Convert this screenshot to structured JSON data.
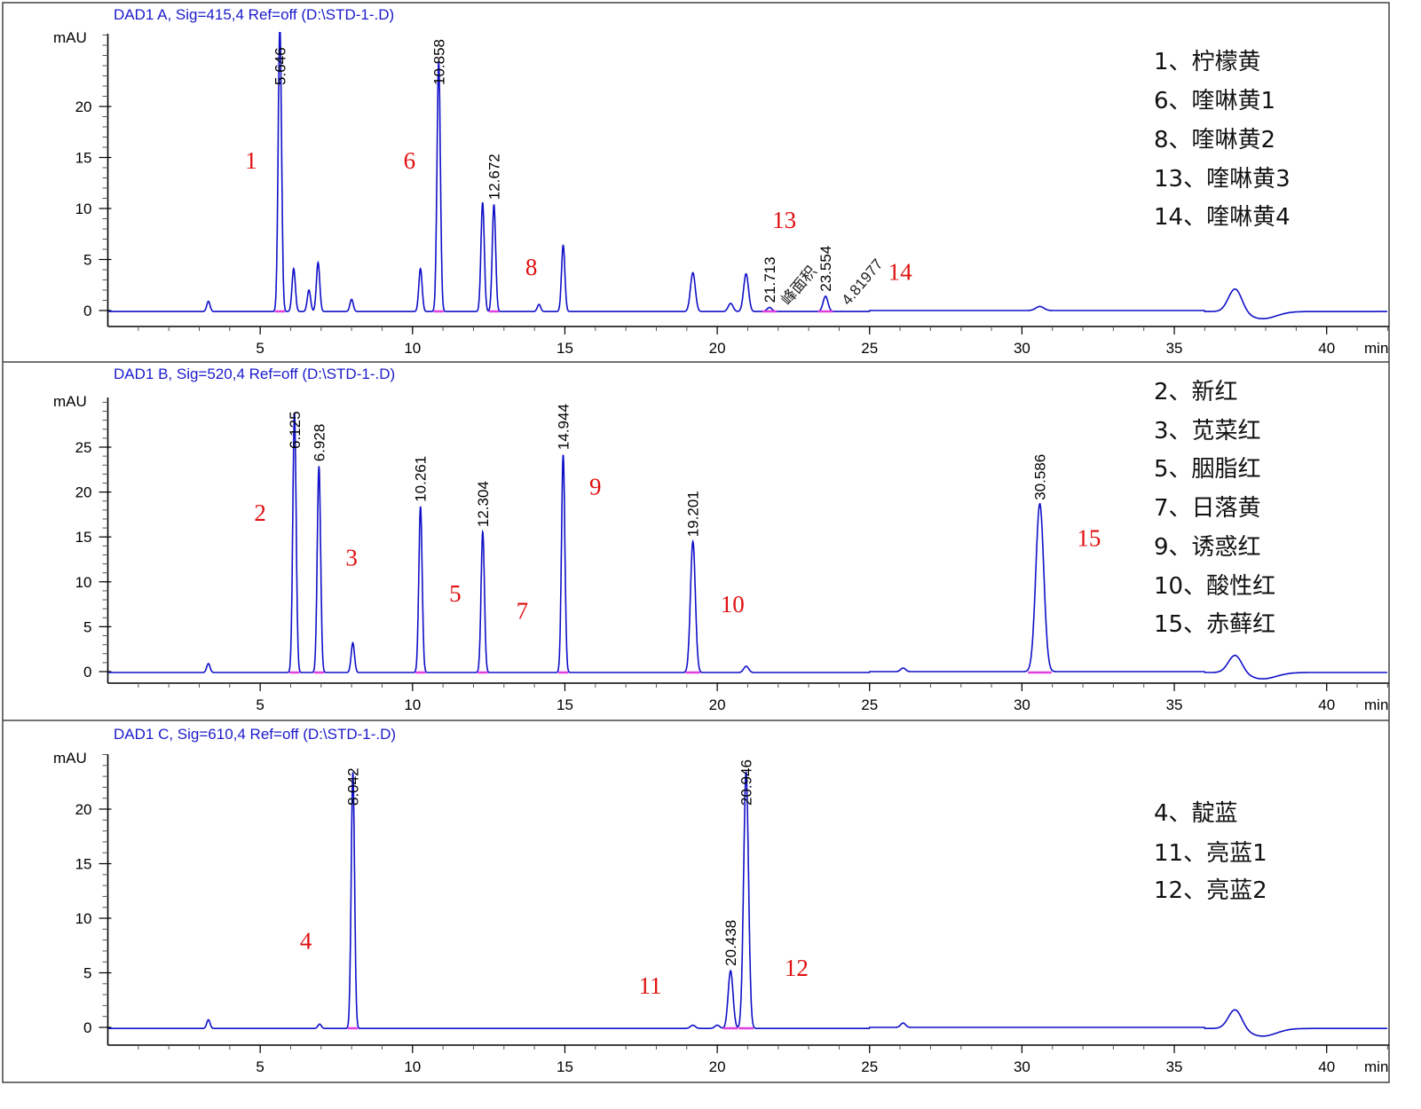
{
  "chart_data": [
    {
      "type": "line",
      "title": "DAD1 A, Sig=415,4 Ref=off (D:\\STD-1-.D)",
      "ylabel": "mAU",
      "xlabel": "min",
      "xlim": [
        0,
        42
      ],
      "ylim": [
        -1,
        27
      ],
      "xticks": [
        5,
        10,
        15,
        20,
        25,
        30,
        35,
        40
      ],
      "yticks": [
        0,
        5,
        10,
        15,
        20
      ],
      "grid": false,
      "color": "#1010c8",
      "peaks": [
        {
          "rt": 3.3,
          "height": 1.0
        },
        {
          "rt": 5.646,
          "height": 28,
          "label": "5.646"
        },
        {
          "rt": 6.1,
          "height": 4.2
        },
        {
          "rt": 6.6,
          "height": 2.1
        },
        {
          "rt": 6.9,
          "height": 4.8
        },
        {
          "rt": 8.0,
          "height": 1.2
        },
        {
          "rt": 10.26,
          "height": 4.2
        },
        {
          "rt": 10.858,
          "height": 24.5,
          "label": "10.858"
        },
        {
          "rt": 12.3,
          "height": 10.7
        },
        {
          "rt": 12.672,
          "height": 10.5,
          "label": "12.672"
        },
        {
          "rt": 14.15,
          "height": 0.7
        },
        {
          "rt": 14.944,
          "height": 6.5
        },
        {
          "rt": 19.2,
          "height": 3.8
        },
        {
          "rt": 20.44,
          "height": 0.8
        },
        {
          "rt": 20.946,
          "height": 3.7
        },
        {
          "rt": 21.713,
          "height": 0.4,
          "label": "21.713"
        },
        {
          "rt": 23.554,
          "height": 1.5,
          "label": "23.554"
        },
        {
          "rt": 30.586,
          "height": 0.4
        },
        {
          "rt": 37.0,
          "height": 2.3
        }
      ],
      "annotations": [
        {
          "text": "峰面积",
          "x": 22.6,
          "y": 1.5,
          "rotate": -50
        },
        {
          "text": "4.81977",
          "x": 24.1,
          "y": 2.6,
          "rotate": -50
        }
      ],
      "compound_labels": [
        {
          "text": "1",
          "x": 4.7,
          "y": 13.9
        },
        {
          "text": "6",
          "x": 9.9,
          "y": 13.9
        },
        {
          "text": "8",
          "x": 13.9,
          "y": 3.5
        },
        {
          "text": "13",
          "x": 22.2,
          "y": 8.1
        },
        {
          "text": "14",
          "x": 26.0,
          "y": 3.0
        }
      ],
      "legend": [
        "1、柠檬黄",
        "6、喹啉黄1",
        "8、喹啉黄2",
        "13、喹啉黄3",
        "14、喹啉黄4"
      ]
    },
    {
      "type": "line",
      "title": "DAD1 B, Sig=520,4 Ref=off (D:\\STD-1-.D)",
      "ylabel": "mAU",
      "xlabel": "min",
      "xlim": [
        0,
        42
      ],
      "ylim": [
        -1,
        30
      ],
      "xticks": [
        5,
        10,
        15,
        20,
        25,
        30,
        35,
        40
      ],
      "yticks": [
        0,
        5,
        10,
        15,
        20,
        25
      ],
      "grid": false,
      "color": "#1010c8",
      "peaks": [
        {
          "rt": 3.3,
          "height": 1.0
        },
        {
          "rt": 6.125,
          "height": 29,
          "label": "6.125"
        },
        {
          "rt": 6.928,
          "height": 23,
          "label": "6.928"
        },
        {
          "rt": 8.04,
          "height": 3.3
        },
        {
          "rt": 10.261,
          "height": 18.5,
          "label": "10.261"
        },
        {
          "rt": 12.304,
          "height": 15.7,
          "label": "12.304"
        },
        {
          "rt": 14.944,
          "height": 24.3,
          "label": "14.944"
        },
        {
          "rt": 19.201,
          "height": 14.6,
          "label": "19.201"
        },
        {
          "rt": 20.95,
          "height": 0.7
        },
        {
          "rt": 26.1,
          "height": 0.4
        },
        {
          "rt": 30.586,
          "height": 18.7,
          "label": "30.586"
        },
        {
          "rt": 37.0,
          "height": 2.0
        }
      ],
      "annotations": [],
      "compound_labels": [
        {
          "text": "2",
          "x": 5.0,
          "y": 16.8
        },
        {
          "text": "3",
          "x": 8.0,
          "y": 11.8
        },
        {
          "text": "5",
          "x": 11.4,
          "y": 7.8
        },
        {
          "text": "7",
          "x": 13.6,
          "y": 5.9
        },
        {
          "text": "9",
          "x": 16.0,
          "y": 19.7
        },
        {
          "text": "10",
          "x": 20.5,
          "y": 6.6
        },
        {
          "text": "15",
          "x": 32.2,
          "y": 14.0
        }
      ],
      "legend": [
        "2、新红",
        "3、苋菜红",
        "5、胭脂红",
        "7、日落黄",
        "9、诱惑红",
        "10、酸性红",
        "15、赤藓红"
      ]
    },
    {
      "type": "line",
      "title": "DAD1 C, Sig=610,4 Ref=off (D:\\STD-1-.D)",
      "ylabel": "mAU",
      "xlabel": "min",
      "xlim": [
        0,
        42
      ],
      "ylim": [
        -1,
        24
      ],
      "xticks": [
        5,
        10,
        15,
        20,
        25,
        30,
        35,
        40
      ],
      "yticks": [
        0,
        5,
        10,
        15,
        20
      ],
      "grid": false,
      "color": "#1010c8",
      "peaks": [
        {
          "rt": 3.3,
          "height": 0.8
        },
        {
          "rt": 6.95,
          "height": 0.4
        },
        {
          "rt": 8.042,
          "height": 23.5,
          "label": "8.042"
        },
        {
          "rt": 19.2,
          "height": 0.3
        },
        {
          "rt": 20.0,
          "height": 0.3
        },
        {
          "rt": 20.438,
          "height": 5.3,
          "label": "20.438"
        },
        {
          "rt": 20.946,
          "height": 23.5,
          "label": "20.946"
        },
        {
          "rt": 26.1,
          "height": 0.4
        },
        {
          "rt": 37.0,
          "height": 1.8
        }
      ],
      "annotations": [],
      "compound_labels": [
        {
          "text": "4",
          "x": 6.5,
          "y": 7.2
        },
        {
          "text": "11",
          "x": 17.8,
          "y": 3.1
        },
        {
          "text": "12",
          "x": 22.6,
          "y": 4.7
        }
      ],
      "legend": [
        "4、靛蓝",
        "11、亮蓝1",
        "12、亮蓝2"
      ]
    }
  ]
}
